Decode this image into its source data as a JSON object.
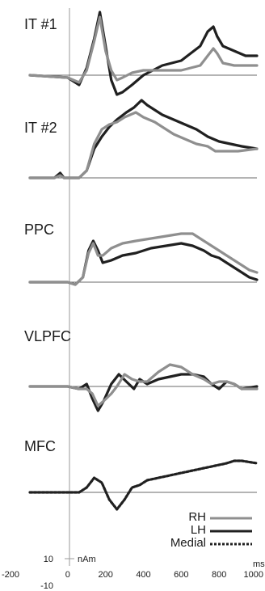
{
  "chart_data": {
    "type": "line",
    "x_ticks": [
      -200,
      0,
      200,
      400,
      600,
      800,
      1000
    ],
    "x_tick_labels": [
      "-200",
      "0",
      "200",
      "400",
      "600",
      "800",
      "1000"
    ],
    "x_unit": "ms",
    "scale_bar": {
      "top_label": "10",
      "bottom_label": "-10",
      "unit": "nAm"
    },
    "legend": [
      {
        "name": "RH",
        "color": "#8f8f8f",
        "dashed": false
      },
      {
        "name": "LH",
        "color": "#202020",
        "dashed": false
      },
      {
        "name": "Medial",
        "color": "#202020",
        "dashed": true
      }
    ],
    "panels": [
      {
        "title": "IT #1",
        "series": [
          {
            "name": "LH",
            "points": [
              [
                -200,
                0
              ],
              [
                0,
                -1
              ],
              [
                60,
                -4
              ],
              [
                100,
                3
              ],
              [
                140,
                15
              ],
              [
                170,
                26
              ],
              [
                200,
                12
              ],
              [
                230,
                -2
              ],
              [
                260,
                -8
              ],
              [
                290,
                -7
              ],
              [
                340,
                -4
              ],
              [
                400,
                0
              ],
              [
                500,
                4
              ],
              [
                600,
                6
              ],
              [
                650,
                9
              ],
              [
                700,
                12
              ],
              [
                740,
                18
              ],
              [
                770,
                20
              ],
              [
                790,
                16
              ],
              [
                820,
                12
              ],
              [
                880,
                10
              ],
              [
                940,
                8
              ],
              [
                1000,
                8
              ]
            ]
          },
          {
            "name": "RH",
            "points": [
              [
                -200,
                0
              ],
              [
                0,
                -1
              ],
              [
                60,
                -3
              ],
              [
                100,
                2
              ],
              [
                140,
                14
              ],
              [
                170,
                24
              ],
              [
                200,
                10
              ],
              [
                230,
                2
              ],
              [
                260,
                -2
              ],
              [
                290,
                -1
              ],
              [
                340,
                1
              ],
              [
                400,
                2
              ],
              [
                500,
                2
              ],
              [
                600,
                2
              ],
              [
                700,
                4
              ],
              [
                740,
                8
              ],
              [
                770,
                11
              ],
              [
                790,
                9
              ],
              [
                820,
                5
              ],
              [
                880,
                4
              ],
              [
                940,
                4
              ],
              [
                1000,
                4
              ]
            ]
          }
        ]
      },
      {
        "title": "IT #2",
        "series": [
          {
            "name": "LH",
            "points": [
              [
                -200,
                0
              ],
              [
                -70,
                0
              ],
              [
                -40,
                2
              ],
              [
                -20,
                0
              ],
              [
                60,
                0
              ],
              [
                100,
                3
              ],
              [
                140,
                12
              ],
              [
                180,
                17
              ],
              [
                220,
                21
              ],
              [
                260,
                24
              ],
              [
                310,
                27
              ],
              [
                350,
                29
              ],
              [
                390,
                32
              ],
              [
                420,
                30
              ],
              [
                500,
                26
              ],
              [
                560,
                24
              ],
              [
                620,
                22
              ],
              [
                680,
                20
              ],
              [
                740,
                17
              ],
              [
                800,
                15
              ],
              [
                860,
                14
              ],
              [
                920,
                13
              ],
              [
                1000,
                12
              ]
            ]
          },
          {
            "name": "RH",
            "points": [
              [
                -200,
                0
              ],
              [
                -70,
                0
              ],
              [
                -40,
                1
              ],
              [
                -20,
                0
              ],
              [
                60,
                0
              ],
              [
                100,
                3
              ],
              [
                140,
                14
              ],
              [
                180,
                20
              ],
              [
                220,
                22
              ],
              [
                260,
                23
              ],
              [
                300,
                25
              ],
              [
                360,
                27
              ],
              [
                400,
                25
              ],
              [
                460,
                23
              ],
              [
                500,
                21
              ],
              [
                560,
                18
              ],
              [
                620,
                16
              ],
              [
                680,
                14
              ],
              [
                740,
                13
              ],
              [
                780,
                11
              ],
              [
                840,
                11
              ],
              [
                900,
                11
              ],
              [
                1000,
                12
              ]
            ]
          }
        ]
      },
      {
        "title": "PPC",
        "series": [
          {
            "name": "LH",
            "points": [
              [
                -200,
                0
              ],
              [
                0,
                0
              ],
              [
                40,
                -1
              ],
              [
                80,
                2
              ],
              [
                110,
                13
              ],
              [
                135,
                17
              ],
              [
                160,
                13
              ],
              [
                185,
                8
              ],
              [
                230,
                9
              ],
              [
                290,
                11
              ],
              [
                360,
                12
              ],
              [
                440,
                14
              ],
              [
                520,
                15
              ],
              [
                600,
                16
              ],
              [
                660,
                15
              ],
              [
                720,
                13
              ],
              [
                760,
                11
              ],
              [
                800,
                10
              ],
              [
                840,
                8
              ],
              [
                880,
                6
              ],
              [
                920,
                4
              ],
              [
                960,
                2
              ],
              [
                1000,
                1
              ]
            ]
          },
          {
            "name": "RH",
            "points": [
              [
                -200,
                0
              ],
              [
                0,
                0
              ],
              [
                40,
                -1
              ],
              [
                80,
                2
              ],
              [
                110,
                12
              ],
              [
                135,
                16
              ],
              [
                160,
                11
              ],
              [
                185,
                11
              ],
              [
                230,
                14
              ],
              [
                290,
                16
              ],
              [
                360,
                17
              ],
              [
                440,
                18
              ],
              [
                520,
                19
              ],
              [
                600,
                20
              ],
              [
                660,
                20
              ],
              [
                720,
                17
              ],
              [
                760,
                15
              ],
              [
                800,
                13
              ],
              [
                840,
                11
              ],
              [
                880,
                9
              ],
              [
                920,
                7
              ],
              [
                960,
                5
              ],
              [
                1000,
                4
              ]
            ]
          }
        ]
      },
      {
        "title": "VLPFC",
        "series": [
          {
            "name": "LH",
            "points": [
              [
                -200,
                0
              ],
              [
                0,
                0
              ],
              [
                60,
                -1
              ],
              [
                100,
                1
              ],
              [
                130,
                -5
              ],
              [
                160,
                -10
              ],
              [
                190,
                -6
              ],
              [
                230,
                1
              ],
              [
                270,
                5
              ],
              [
                310,
                2
              ],
              [
                350,
                -1
              ],
              [
                380,
                3
              ],
              [
                420,
                1
              ],
              [
                480,
                3
              ],
              [
                540,
                4
              ],
              [
                600,
                5
              ],
              [
                660,
                5
              ],
              [
                720,
                4
              ],
              [
                760,
                1
              ],
              [
                800,
                -1
              ],
              [
                840,
                2
              ],
              [
                880,
                1
              ],
              [
                920,
                -1
              ],
              [
                1000,
                0
              ]
            ]
          },
          {
            "name": "RH",
            "points": [
              [
                -200,
                0
              ],
              [
                0,
                0
              ],
              [
                60,
                -1
              ],
              [
                100,
                -1
              ],
              [
                130,
                -3
              ],
              [
                160,
                -8
              ],
              [
                190,
                -6
              ],
              [
                230,
                -3
              ],
              [
                260,
                0
              ],
              [
                300,
                5
              ],
              [
                340,
                3
              ],
              [
                380,
                2
              ],
              [
                420,
                2
              ],
              [
                480,
                6
              ],
              [
                540,
                9
              ],
              [
                600,
                8
              ],
              [
                660,
                5
              ],
              [
                720,
                3
              ],
              [
                760,
                1
              ],
              [
                800,
                2
              ],
              [
                840,
                2
              ],
              [
                880,
                1
              ],
              [
                920,
                -1
              ],
              [
                1000,
                -1
              ]
            ]
          }
        ]
      },
      {
        "title": "MFC",
        "series": [
          {
            "name": "Medial",
            "dashed": true,
            "points": [
              [
                -200,
                0
              ],
              [
                0,
                0
              ],
              [
                60,
                0
              ],
              [
                100,
                2
              ],
              [
                140,
                6
              ],
              [
                180,
                4
              ],
              [
                220,
                -3
              ],
              [
                260,
                -7
              ],
              [
                300,
                -3
              ],
              [
                340,
                2
              ],
              [
                380,
                3
              ],
              [
                420,
                5
              ],
              [
                480,
                6
              ],
              [
                540,
                7
              ],
              [
                600,
                8
              ],
              [
                660,
                9
              ],
              [
                720,
                10
              ],
              [
                780,
                11
              ],
              [
                840,
                12
              ],
              [
                880,
                13
              ],
              [
                920,
                13
              ],
              [
                1000,
                12
              ]
            ]
          }
        ]
      }
    ]
  }
}
